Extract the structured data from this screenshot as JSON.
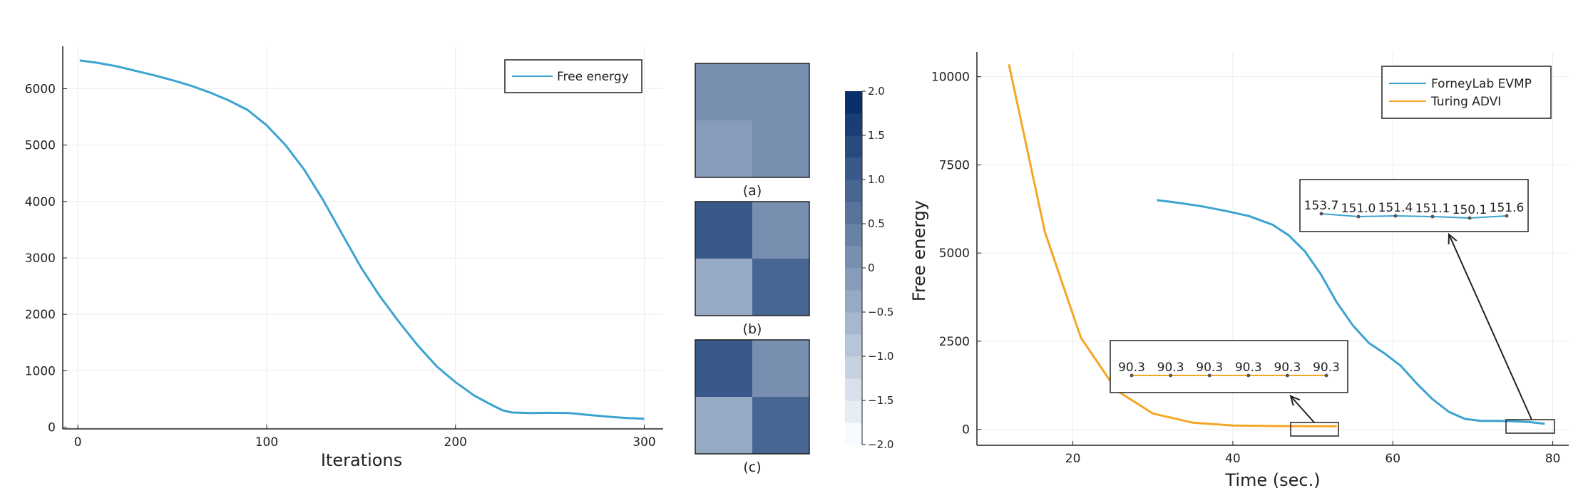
{
  "chart_data": [
    {
      "type": "line",
      "xlabel": "Iterations",
      "ylabel": "",
      "xlim": [
        -8,
        310
      ],
      "ylim": [
        -30,
        6750
      ],
      "xticks": [
        0,
        100,
        200,
        300
      ],
      "yticks": [
        0,
        1000,
        2000,
        3000,
        4000,
        5000,
        6000
      ],
      "grid": true,
      "legend": "top-right",
      "series": [
        {
          "name": "Free energy",
          "color": "#3ba3d0",
          "x": [
            1,
            10,
            20,
            30,
            40,
            50,
            60,
            70,
            80,
            90,
            100,
            110,
            120,
            130,
            140,
            150,
            160,
            170,
            180,
            190,
            200,
            210,
            220,
            225,
            230,
            240,
            250,
            260,
            270,
            280,
            290,
            300
          ],
          "y": [
            6500,
            6460,
            6400,
            6320,
            6240,
            6150,
            6050,
            5930,
            5790,
            5620,
            5350,
            5000,
            4560,
            4020,
            3420,
            2830,
            2320,
            1870,
            1450,
            1080,
            800,
            560,
            380,
            300,
            260,
            250,
            255,
            250,
            220,
            190,
            165,
            150
          ]
        }
      ]
    },
    {
      "type": "heatmap",
      "panels": [
        {
          "label": "(a)",
          "values": [
            [
              0.2,
              0.1
            ],
            [
              -0.1,
              0.2
            ]
          ]
        },
        {
          "label": "(b)",
          "values": [
            [
              1.1,
              0.2
            ],
            [
              -0.5,
              0.9
            ]
          ]
        },
        {
          "label": "(c)",
          "values": [
            [
              1.1,
              0.2
            ],
            [
              -0.5,
              0.9
            ]
          ]
        }
      ],
      "colorbar": {
        "min": -2.0,
        "max": 2.0,
        "ticks": [
          "−2.0",
          "−1.5",
          "−1.0",
          "−0.5",
          "0",
          "0.5",
          "1.0",
          "1.5",
          "2.0"
        ],
        "low_color": "#f7fbff",
        "high_color": "#08306b"
      }
    },
    {
      "type": "line",
      "xlabel": "Time (sec.)",
      "ylabel": "Free energy",
      "xlim": [
        8,
        82
      ],
      "ylim": [
        -450,
        10700
      ],
      "xticks": [
        20,
        40,
        60,
        80
      ],
      "yticks": [
        0,
        2500,
        5000,
        7500,
        10000
      ],
      "grid": true,
      "legend": "top-right",
      "series": [
        {
          "name": "ForneyLab EVMP",
          "color": "#3ba3d0",
          "x": [
            30.5,
            33,
            36,
            39,
            42,
            45,
            47,
            49,
            51,
            53,
            55,
            57,
            59,
            61,
            63,
            65,
            67,
            69,
            71,
            73,
            75,
            77,
            79
          ],
          "y": [
            6500,
            6430,
            6330,
            6200,
            6050,
            5800,
            5500,
            5050,
            4400,
            3600,
            2950,
            2450,
            2150,
            1800,
            1300,
            850,
            500,
            300,
            240,
            240,
            230,
            210,
            160
          ]
        },
        {
          "name": "Turing ADVI",
          "color": "#f5a623",
          "x": [
            12,
            16.5,
            21,
            25.5,
            30,
            35,
            40,
            45,
            50,
            53
          ],
          "y": [
            10350,
            5600,
            2600,
            1100,
            450,
            190,
            110,
            95,
            92,
            90
          ]
        }
      ],
      "insets": [
        {
          "series": "ForneyLab EVMP",
          "labels": [
            "153.7",
            "151.0",
            "151.4",
            "151.1",
            "150.1",
            "151.6"
          ]
        },
        {
          "series": "Turing ADVI",
          "labels": [
            "90.3",
            "90.3",
            "90.3",
            "90.3",
            "90.3",
            "90.3"
          ]
        }
      ]
    }
  ]
}
